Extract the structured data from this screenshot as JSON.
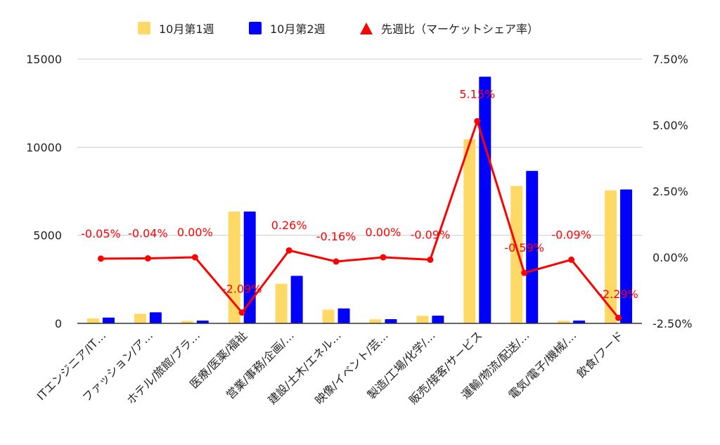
{
  "chart_data": {
    "type": "bar",
    "categories": [
      "ITエンジニア/IT…",
      "ファッション/ア…",
      "ホテル/旅館/ブラ…",
      "医療/医薬/福祉",
      "営業/事務/企画/…",
      "建設/土木/エネル…",
      "映像/イベント/芸…",
      "製造/工場/化学/…",
      "販売/接客/サービス",
      "運輸/物流/配送/…",
      "電気/電子/機械/…",
      "飲食/フード"
    ],
    "series": [
      {
        "name": "10月第1週",
        "kind": "bar",
        "axis": "left",
        "color": "#ffd966",
        "values": [
          280,
          550,
          140,
          6350,
          2250,
          780,
          230,
          430,
          10450,
          7800,
          150,
          7550
        ]
      },
      {
        "name": "10月第2週",
        "kind": "bar",
        "axis": "left",
        "color": "#0000ff",
        "values": [
          330,
          630,
          160,
          6350,
          2700,
          850,
          240,
          440,
          14000,
          8650,
          160,
          7600
        ]
      },
      {
        "name": "先週比（マーケットシェア率）",
        "kind": "line",
        "axis": "right",
        "color": "#ff0000",
        "values": [
          -0.05,
          -0.04,
          0.0,
          -2.09,
          0.26,
          -0.16,
          0.0,
          -0.09,
          5.15,
          -0.59,
          -0.09,
          -2.29
        ],
        "labels": [
          "-0.05%",
          "-0.04%",
          "0.00%",
          "-2.09%",
          "0.26%",
          "-0.16%",
          "0.00%",
          "-0.09%",
          "5.15%",
          "-0.59%",
          "-0.09%",
          "-2.29%"
        ]
      }
    ],
    "y_left": {
      "ylim": [
        0,
        15000
      ],
      "ticks": [
        0,
        5000,
        10000,
        15000
      ],
      "tick_labels": [
        "0",
        "5000",
        "10000",
        "15000"
      ]
    },
    "y_right": {
      "ylim": [
        -2.5,
        7.5
      ],
      "ticks": [
        -2.5,
        0,
        2.5,
        5,
        7.5
      ],
      "tick_labels": [
        "-2.50%",
        "0.00%",
        "2.50%",
        "5.00%",
        "7.50%"
      ]
    },
    "grid": true,
    "legend_position": "top",
    "colors": {
      "grid": "#cccccc",
      "axis": "#333333",
      "text": "#222222"
    }
  }
}
